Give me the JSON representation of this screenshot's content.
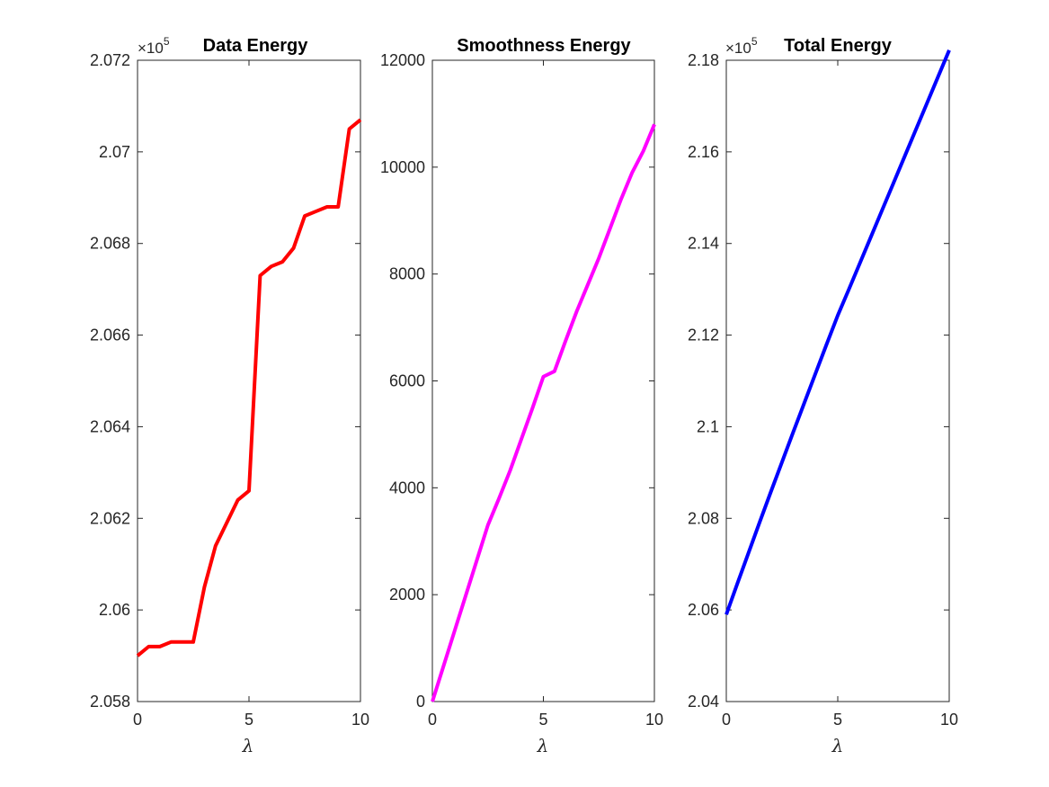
{
  "chart_data": [
    {
      "type": "line",
      "title": "Data Energy",
      "xlabel": "λ",
      "ylabel": "",
      "exponent_label": "×10",
      "exponent_power": "5",
      "xlim": [
        0,
        10
      ],
      "ylim": [
        2.058,
        2.072
      ],
      "xticks": [
        0,
        5,
        10
      ],
      "xtick_labels": [
        "0",
        "5",
        "10"
      ],
      "yticks": [
        2.058,
        2.06,
        2.062,
        2.064,
        2.066,
        2.068,
        2.07,
        2.072
      ],
      "ytick_labels": [
        "2.058",
        "2.06",
        "2.062",
        "2.064",
        "2.066",
        "2.068",
        "2.07",
        "2.072"
      ],
      "color": "#ff0000",
      "grid": false,
      "series": [
        {
          "x": [
            0,
            0.5,
            1,
            1.5,
            2,
            2.5,
            3,
            3.5,
            4,
            4.5,
            5,
            5.5,
            6,
            6.5,
            7,
            7.5,
            8,
            8.5,
            9,
            9.5,
            10
          ],
          "values": [
            2.059,
            2.0592,
            2.0592,
            2.0593,
            2.0593,
            2.0593,
            2.0605,
            2.0614,
            2.0619,
            2.0624,
            2.0626,
            2.0673,
            2.0675,
            2.0676,
            2.0679,
            2.0686,
            2.0687,
            2.0688,
            2.0688,
            2.0705,
            2.0707
          ]
        }
      ]
    },
    {
      "type": "line",
      "title": "Smoothness Energy",
      "xlabel": "λ",
      "ylabel": "",
      "xlim": [
        0,
        10
      ],
      "ylim": [
        0,
        12000
      ],
      "xticks": [
        0,
        5,
        10
      ],
      "xtick_labels": [
        "0",
        "5",
        "10"
      ],
      "yticks": [
        0,
        2000,
        4000,
        6000,
        8000,
        10000,
        12000
      ],
      "ytick_labels": [
        "0",
        "2000",
        "4000",
        "6000",
        "8000",
        "10000",
        "12000"
      ],
      "color": "#ff00ff",
      "grid": false,
      "series": [
        {
          "x": [
            0,
            0.5,
            1,
            1.5,
            2,
            2.5,
            3,
            3.5,
            4,
            4.5,
            5,
            5.5,
            6,
            6.5,
            7,
            7.5,
            8,
            8.5,
            9,
            9.5,
            10
          ],
          "values": [
            0,
            660,
            1320,
            1980,
            2640,
            3300,
            3800,
            4320,
            4900,
            5480,
            6080,
            6180,
            6750,
            7300,
            7800,
            8300,
            8850,
            9400,
            9900,
            10300,
            10800
          ]
        }
      ]
    },
    {
      "type": "line",
      "title": "Total Energy",
      "xlabel": "λ",
      "ylabel": "",
      "exponent_label": "×10",
      "exponent_power": "5",
      "xlim": [
        0,
        10
      ],
      "ylim": [
        2.04,
        2.18
      ],
      "xticks": [
        0,
        5,
        10
      ],
      "xtick_labels": [
        "0",
        "5",
        "10"
      ],
      "yticks": [
        2.04,
        2.06,
        2.08,
        2.1,
        2.12,
        2.14,
        2.16,
        2.18
      ],
      "ytick_labels": [
        "2.04",
        "2.06",
        "2.08",
        "2.1",
        "2.12",
        "2.14",
        "2.16",
        "2.18"
      ],
      "color": "#0000ff",
      "grid": false,
      "series": [
        {
          "x": [
            0,
            0.5,
            1,
            1.5,
            2,
            2.5,
            3,
            3.5,
            4,
            4.5,
            5,
            5.5,
            6,
            6.5,
            7,
            7.5,
            8,
            8.5,
            9,
            9.5,
            10
          ],
          "values": [
            2.059,
            2.0658,
            2.0725,
            2.0792,
            2.0858,
            2.0923,
            2.0988,
            2.1052,
            2.1116,
            2.118,
            2.1243,
            2.13,
            2.1358,
            2.1416,
            2.1474,
            2.1532,
            2.159,
            2.1648,
            2.1706,
            2.1764,
            2.1822
          ]
        }
      ]
    }
  ]
}
